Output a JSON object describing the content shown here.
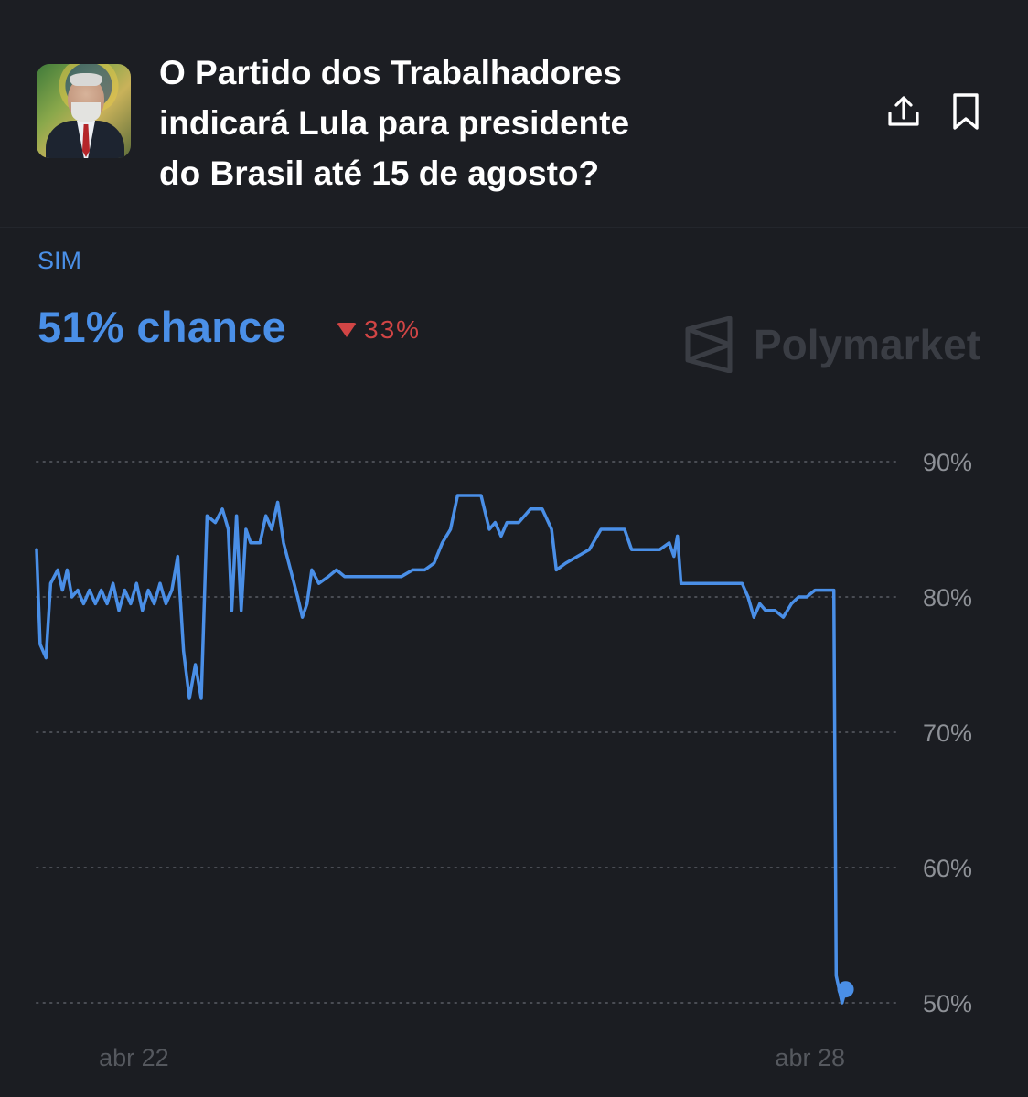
{
  "market": {
    "title": "O Partido dos Trabalhadores indicará Lula para presidente do Brasil até 15 de agosto?",
    "title_lines": [
      "O Partido dos Trabalhadores",
      "indicará Lula para presidente",
      "do Brasil até 15 de agosto?"
    ],
    "outcome_label": "SIM",
    "chance_text": "51% chance",
    "delta_text": "33%",
    "delta_direction": "down",
    "brand": "Polymarket"
  },
  "icons": {
    "share": "share-icon",
    "bookmark": "bookmark-icon",
    "brand_logo": "polymarket-logo-icon"
  },
  "colors": {
    "line": "#4a8fe7",
    "down": "#d14545",
    "background": "#1b1d22",
    "grid": "#4a4d54",
    "tick_text": "#8e9197"
  },
  "chart_data": {
    "type": "line",
    "title": "",
    "xlabel": "",
    "ylabel": "",
    "ylim": [
      50,
      90
    ],
    "yticks": [
      90,
      80,
      70,
      60,
      50
    ],
    "ytick_labels": [
      "90%",
      "80%",
      "70%",
      "60%",
      "50%"
    ],
    "x_tick_labels": [
      {
        "label": "abr 22",
        "x": 0.75
      },
      {
        "label": "abr 28",
        "x": 6.5
      }
    ],
    "xlim": [
      0,
      7
    ],
    "grid": true,
    "series": [
      {
        "values": [
          [
            0.0,
            83.5
          ],
          [
            0.03,
            76.5
          ],
          [
            0.08,
            75.5
          ],
          [
            0.12,
            81.0
          ],
          [
            0.18,
            82.0
          ],
          [
            0.22,
            80.5
          ],
          [
            0.26,
            82.0
          ],
          [
            0.3,
            80.0
          ],
          [
            0.35,
            80.5
          ],
          [
            0.4,
            79.5
          ],
          [
            0.45,
            80.5
          ],
          [
            0.5,
            79.5
          ],
          [
            0.55,
            80.5
          ],
          [
            0.6,
            79.5
          ],
          [
            0.65,
            81.0
          ],
          [
            0.7,
            79.0
          ],
          [
            0.75,
            80.5
          ],
          [
            0.8,
            79.5
          ],
          [
            0.85,
            81.0
          ],
          [
            0.9,
            79.0
          ],
          [
            0.95,
            80.5
          ],
          [
            1.0,
            79.5
          ],
          [
            1.05,
            81.0
          ],
          [
            1.1,
            79.5
          ],
          [
            1.15,
            80.5
          ],
          [
            1.2,
            83.0
          ],
          [
            1.25,
            76.0
          ],
          [
            1.3,
            72.5
          ],
          [
            1.35,
            75.0
          ],
          [
            1.4,
            72.5
          ],
          [
            1.45,
            86.0
          ],
          [
            1.52,
            85.5
          ],
          [
            1.58,
            86.5
          ],
          [
            1.63,
            85.0
          ],
          [
            1.66,
            79.0
          ],
          [
            1.7,
            86.0
          ],
          [
            1.74,
            79.0
          ],
          [
            1.78,
            85.0
          ],
          [
            1.82,
            84.0
          ],
          [
            1.9,
            84.0
          ],
          [
            1.95,
            86.0
          ],
          [
            2.0,
            85.0
          ],
          [
            2.05,
            87.0
          ],
          [
            2.1,
            84.0
          ],
          [
            2.16,
            82.0
          ],
          [
            2.22,
            80.0
          ],
          [
            2.26,
            78.5
          ],
          [
            2.3,
            79.5
          ],
          [
            2.34,
            82.0
          ],
          [
            2.4,
            81.0
          ],
          [
            2.48,
            81.5
          ],
          [
            2.55,
            82.0
          ],
          [
            2.62,
            81.5
          ],
          [
            2.7,
            81.5
          ],
          [
            2.8,
            81.5
          ],
          [
            2.9,
            81.5
          ],
          [
            3.0,
            81.5
          ],
          [
            3.1,
            81.5
          ],
          [
            3.2,
            82.0
          ],
          [
            3.3,
            82.0
          ],
          [
            3.38,
            82.5
          ],
          [
            3.45,
            84.0
          ],
          [
            3.52,
            85.0
          ],
          [
            3.58,
            87.5
          ],
          [
            3.68,
            87.5
          ],
          [
            3.78,
            87.5
          ],
          [
            3.85,
            85.0
          ],
          [
            3.9,
            85.5
          ],
          [
            3.95,
            84.5
          ],
          [
            4.0,
            85.5
          ],
          [
            4.1,
            85.5
          ],
          [
            4.2,
            86.5
          ],
          [
            4.3,
            86.5
          ],
          [
            4.38,
            85.0
          ],
          [
            4.42,
            82.0
          ],
          [
            4.5,
            82.5
          ],
          [
            4.6,
            83.0
          ],
          [
            4.7,
            83.5
          ],
          [
            4.8,
            85.0
          ],
          [
            4.9,
            85.0
          ],
          [
            5.0,
            85.0
          ],
          [
            5.06,
            83.5
          ],
          [
            5.12,
            83.5
          ],
          [
            5.18,
            83.5
          ],
          [
            5.25,
            83.5
          ],
          [
            5.3,
            83.5
          ],
          [
            5.38,
            84.0
          ],
          [
            5.42,
            83.0
          ],
          [
            5.45,
            84.5
          ],
          [
            5.48,
            81.0
          ],
          [
            5.55,
            81.0
          ],
          [
            5.7,
            81.0
          ],
          [
            5.85,
            81.0
          ],
          [
            6.0,
            81.0
          ],
          [
            6.05,
            80.0
          ],
          [
            6.1,
            78.5
          ],
          [
            6.15,
            79.5
          ],
          [
            6.2,
            79.0
          ],
          [
            6.28,
            79.0
          ],
          [
            6.35,
            78.5
          ],
          [
            6.42,
            79.5
          ],
          [
            6.48,
            80.0
          ],
          [
            6.55,
            80.0
          ],
          [
            6.62,
            80.5
          ],
          [
            6.7,
            80.5
          ],
          [
            6.78,
            80.5
          ],
          [
            6.8,
            52.0
          ],
          [
            6.85,
            50.0
          ],
          [
            6.88,
            51.0
          ]
        ]
      }
    ]
  }
}
